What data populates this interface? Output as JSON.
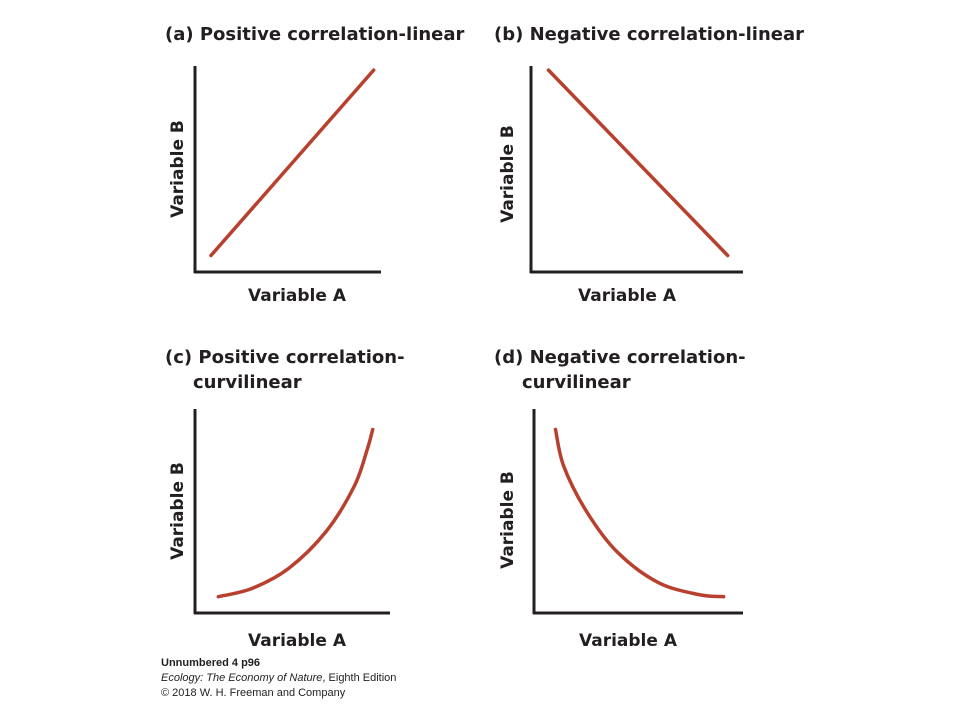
{
  "colors": {
    "curve": "#b8402f",
    "axis": "#231f20",
    "text": "#231f20"
  },
  "chart_data": [
    {
      "type": "line",
      "title": "(a) Positive correlation-linear",
      "xlabel": "Variable A",
      "ylabel": "Variable B",
      "shape": "positive-linear",
      "x": [
        0.08,
        0.95
      ],
      "y": [
        0.08,
        0.98
      ]
    },
    {
      "type": "line",
      "title": "(b) Negative correlation-linear",
      "xlabel": "Variable A",
      "ylabel": "Variable B",
      "shape": "negative-linear",
      "x": [
        0.08,
        0.95
      ],
      "y": [
        0.98,
        0.08
      ]
    },
    {
      "type": "line",
      "title_line1": "(c) Positive correlation-",
      "title_line2": "curvilinear",
      "xlabel": "Variable A",
      "ylabel": "Variable B",
      "shape": "positive-curvilinear",
      "x": [
        0.12,
        0.3,
        0.5,
        0.7,
        0.85,
        0.92,
        0.95
      ],
      "y": [
        0.08,
        0.12,
        0.22,
        0.4,
        0.62,
        0.8,
        0.9
      ]
    },
    {
      "type": "line",
      "title_line1": "(d) Negative correlation-",
      "title_line2": "curvilinear",
      "xlabel": "Variable A",
      "ylabel": "Variable B",
      "shape": "negative-curvilinear",
      "x": [
        0.1,
        0.14,
        0.25,
        0.4,
        0.6,
        0.8,
        0.92
      ],
      "y": [
        0.9,
        0.72,
        0.5,
        0.3,
        0.15,
        0.09,
        0.08
      ]
    }
  ],
  "credits": {
    "figure_id": "Unnumbered 4 p96",
    "book_title": "Ecology: The Economy of Nature",
    "edition": ", Eighth Edition",
    "copyright": "© 2018 W. H. Freeman and Company"
  }
}
